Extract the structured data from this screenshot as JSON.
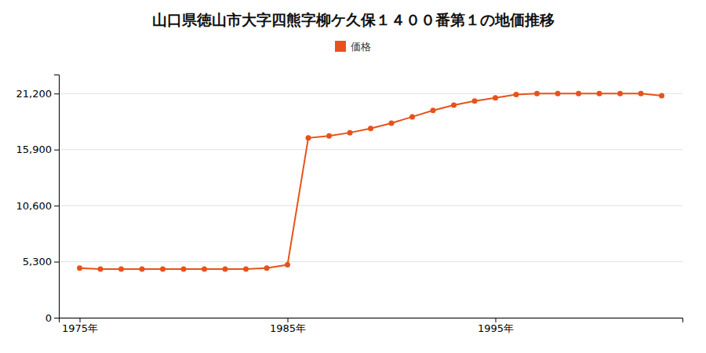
{
  "chart_data": {
    "type": "line",
    "title": "山口県徳山市大字四熊字柳ケ久保１４００番第１の地価推移",
    "x": [
      1975,
      1976,
      1977,
      1978,
      1979,
      1980,
      1981,
      1982,
      1983,
      1984,
      1985,
      1986,
      1987,
      1988,
      1989,
      1990,
      1991,
      1992,
      1993,
      1994,
      1995,
      1996,
      1997,
      1998,
      1999,
      2000,
      2001,
      2002,
      2003
    ],
    "series": [
      {
        "name": "価格",
        "color": "#E8521A",
        "marker": "circle",
        "values": [
          4700,
          4600,
          4600,
          4600,
          4600,
          4600,
          4600,
          4600,
          4600,
          4700,
          5000,
          17000,
          17200,
          17500,
          17900,
          18400,
          19000,
          19600,
          20100,
          20500,
          20800,
          21100,
          21200,
          21200,
          21200,
          21200,
          21200,
          21200,
          21000
        ]
      }
    ],
    "xlim": [
      1974,
      2004
    ],
    "xticks": [
      {
        "value": 1975,
        "label": "1975年"
      },
      {
        "value": 1985,
        "label": "1985年"
      },
      {
        "value": 1995,
        "label": "1995年"
      }
    ],
    "ylim": [
      0,
      23000
    ],
    "yticks": [
      0,
      {
        "value": 5300,
        "label": "5,300"
      },
      {
        "value": 10600,
        "label": "10,600"
      },
      {
        "value": 15900,
        "label": "15,900"
      },
      {
        "value": 21200,
        "label": "21,200"
      }
    ],
    "grid": true,
    "legend": "top"
  }
}
